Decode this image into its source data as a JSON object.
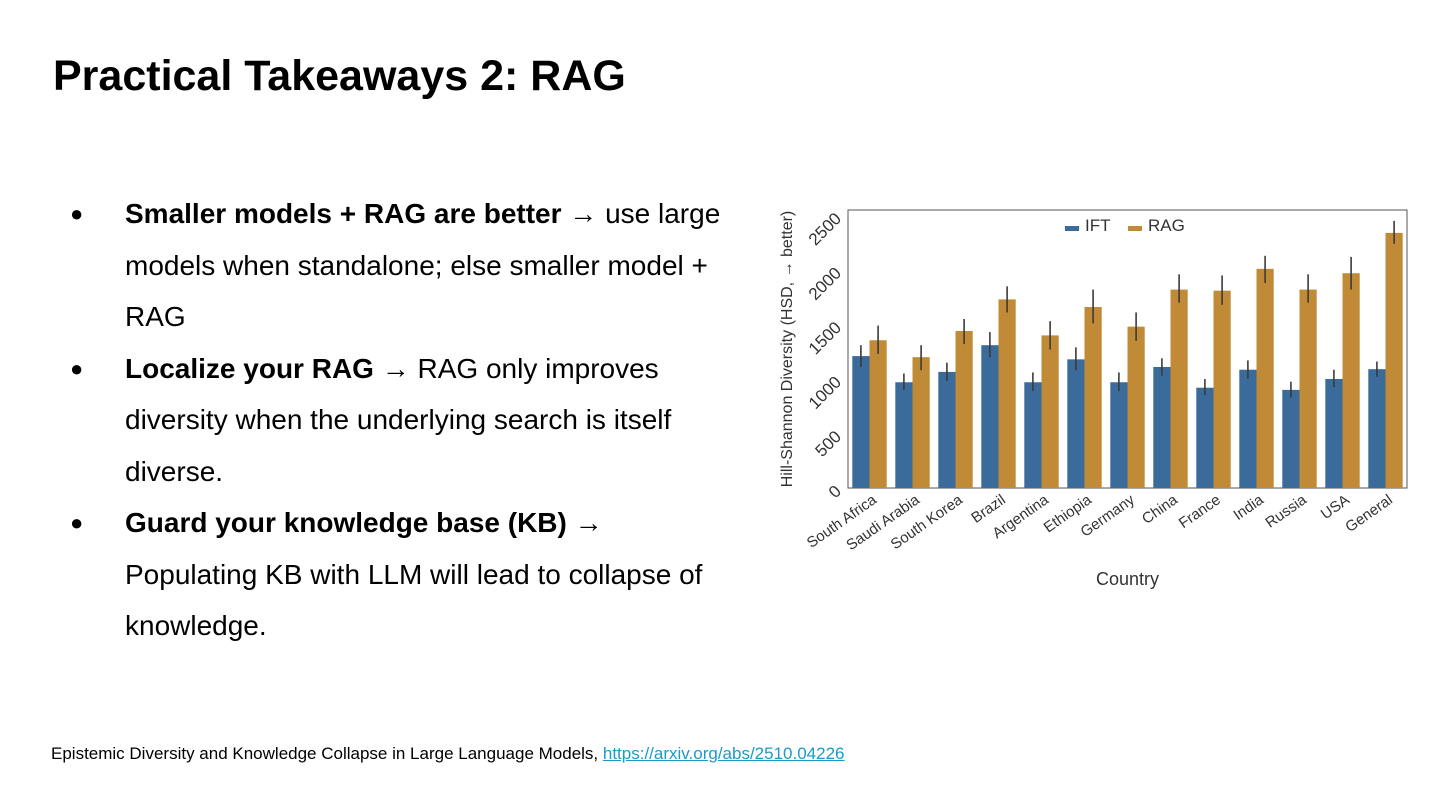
{
  "slide": {
    "title": "Practical Takeaways 2: RAG",
    "bullets": [
      {
        "bold": "Smaller models + RAG are better",
        "rest": " → use large models when standalone; else smaller model + RAG"
      },
      {
        "bold": "Localize your RAG",
        "rest": " → RAG only improves diversity when the underlying search is itself diverse."
      },
      {
        "bold": "Guard your knowledge base (KB)",
        "rest": " → Populating KB with LLM will lead to collapse of knowledge."
      }
    ],
    "bullet_glyph": "●",
    "footer_text": "Epistemic Diversity and Knowledge Collapse in Large Language Models, ",
    "footer_link": "https://arxiv.org/abs/2510.04226"
  },
  "colors": {
    "IFT": "#3a6b9a",
    "RAG": "#c08a36",
    "errorbar": "#3a3a3a",
    "link": "#1a9bc7"
  },
  "chart_data": {
    "type": "bar",
    "xlabel": "Country",
    "ylabel": "Hill-Shannon Diversity (HSD, → better)",
    "ylim": [
      0,
      2550
    ],
    "yticks": [
      0,
      500,
      1000,
      1500,
      2000,
      2500
    ],
    "legend_position": "top-center",
    "grid": false,
    "categories": [
      "South Africa",
      "Saudi Arabia",
      "South Korea",
      "Brazil",
      "Argentina",
      "Ethiopia",
      "Germany",
      "China",
      "France",
      "India",
      "Russia",
      "USA",
      "General"
    ],
    "series": [
      {
        "name": "IFT",
        "values": [
          1210,
          970,
          1065,
          1310,
          970,
          1180,
          970,
          1110,
          920,
          1085,
          900,
          1000,
          1090
        ],
        "err": [
          [
            1110,
            1310
          ],
          [
            900,
            1050
          ],
          [
            985,
            1150
          ],
          [
            1200,
            1430
          ],
          [
            890,
            1060
          ],
          [
            1080,
            1290
          ],
          [
            890,
            1060
          ],
          [
            1030,
            1190
          ],
          [
            850,
            1000
          ],
          [
            1000,
            1170
          ],
          [
            830,
            975
          ],
          [
            925,
            1085
          ],
          [
            1020,
            1160
          ]
        ]
      },
      {
        "name": "RAG",
        "values": [
          1355,
          1200,
          1440,
          1730,
          1400,
          1660,
          1480,
          1820,
          1810,
          2010,
          1820,
          1970,
          2340
        ],
        "err": [
          [
            1230,
            1490
          ],
          [
            1080,
            1310
          ],
          [
            1320,
            1550
          ],
          [
            1610,
            1850
          ],
          [
            1270,
            1530
          ],
          [
            1510,
            1820
          ],
          [
            1350,
            1610
          ],
          [
            1700,
            1960
          ],
          [
            1680,
            1950
          ],
          [
            1880,
            2130
          ],
          [
            1700,
            1960
          ],
          [
            1820,
            2120
          ],
          [
            2240,
            2450
          ]
        ]
      }
    ]
  }
}
